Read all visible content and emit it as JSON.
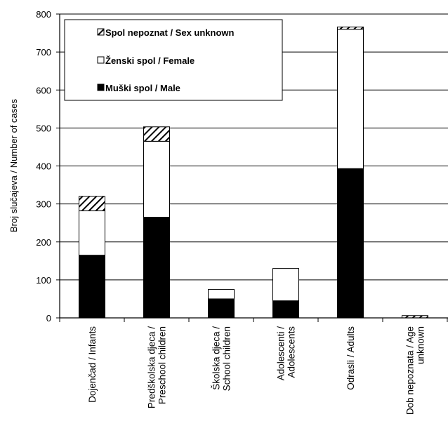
{
  "chart_data": {
    "type": "bar",
    "stacked": true,
    "ylabel": "Broj slučajeva / Number  of cases",
    "ylim": [
      0,
      800
    ],
    "yticks": [
      0,
      100,
      200,
      300,
      400,
      500,
      600,
      700,
      800
    ],
    "grid": true,
    "legend_position": "top-left",
    "categories": [
      [
        "Dojenčad / Infants"
      ],
      [
        "Predškolska djeca /",
        "Preschool children"
      ],
      [
        "Školska djeca /",
        "School children"
      ],
      [
        "Adolescenti /",
        "Adolescents"
      ],
      [
        "Odrasli / Adults"
      ],
      [
        "Dob nepoznata /  Age",
        "unknown"
      ]
    ],
    "series": [
      {
        "name": "Muški spol / Male",
        "values": [
          165,
          265,
          50,
          45,
          393,
          0
        ],
        "color": "#000000",
        "pattern": "solid"
      },
      {
        "name": "Ženski spol / Female",
        "values": [
          117,
          200,
          25,
          85,
          367,
          0
        ],
        "color": "#ffffff",
        "pattern": "solid"
      },
      {
        "name": "Spol nepoznat / Sex unknown",
        "values": [
          38,
          38,
          0,
          0,
          6,
          6
        ],
        "color": "#ffffff",
        "pattern": "hatch"
      }
    ],
    "legend_order": [
      2,
      1,
      0
    ]
  }
}
